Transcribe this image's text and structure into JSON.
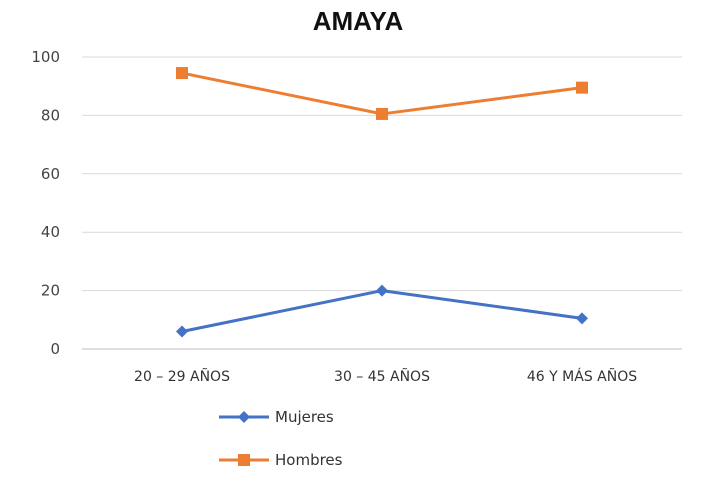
{
  "chart_data": {
    "type": "line",
    "title": "AMAYA",
    "xlabel": "",
    "ylabel": "",
    "categories": [
      "20  –  29 AÑOS",
      "30  –  45 AÑOS",
      "46 Y MÁS AÑOS"
    ],
    "ylim": [
      0,
      100
    ],
    "yticks": [
      "0",
      "20",
      "40",
      "60",
      "80",
      "100"
    ],
    "grid": true,
    "legend": "bottom",
    "series": [
      {
        "name": "Mujeres",
        "values": [
          6,
          20,
          10.5
        ],
        "color": "#4472C4",
        "marker": "diamond"
      },
      {
        "name": "Hombres",
        "values": [
          94.5,
          80.5,
          89.5
        ],
        "color": "#ED7D31",
        "marker": "square"
      }
    ]
  }
}
